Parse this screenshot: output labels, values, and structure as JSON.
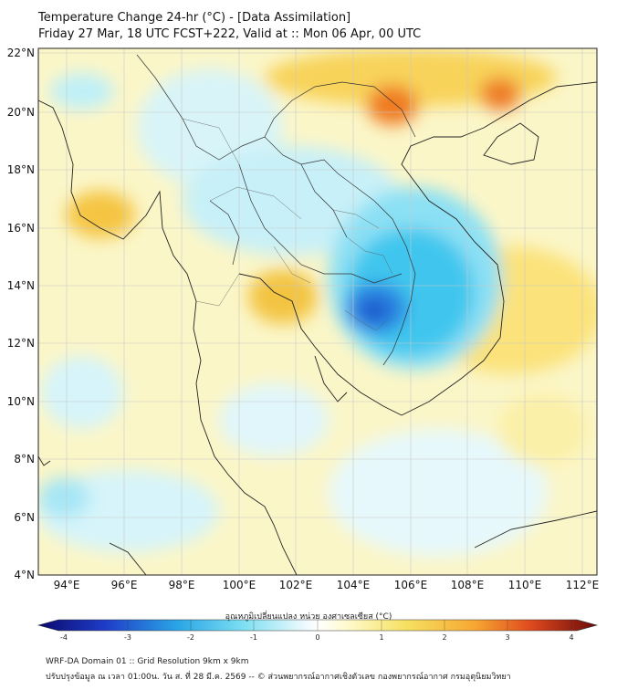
{
  "title": {
    "line1": "Temperature Change 24-hr (°C) - [Data Assimilation]",
    "line2": "Friday 27 Mar, 18 UTC FCST+222, Valid at :: Mon 06 Apr, 00 UTC"
  },
  "map": {
    "lat_labels": [
      "22°N",
      "20°N",
      "18°N",
      "16°N",
      "14°N",
      "12°N",
      "10°N",
      "8°N",
      "6°N",
      "4°N"
    ],
    "lon_labels": [
      "94°E",
      "96°E",
      "98°E",
      "100°E",
      "102°E",
      "104°E",
      "106°E",
      "108°E",
      "110°E",
      "112°E"
    ],
    "lat_range": [
      4,
      22.3
    ],
    "lon_range": [
      93,
      112.5
    ]
  },
  "colorbar": {
    "title": "อุณหภูมิเปลี่ยนแปลง หน่วย องศาเซลเซียส (°C)",
    "ticks": [
      "-4",
      "-3",
      "-2",
      "-1",
      "0",
      "1",
      "2",
      "3",
      "4"
    ],
    "min": -4,
    "max": 4,
    "colors": [
      "#0a0a6e",
      "#1f3cc8",
      "#2aa6e6",
      "#52d6f0",
      "#bff0f8",
      "#ffffff",
      "#fff8b0",
      "#f6e060",
      "#f7b23c",
      "#e8501e",
      "#b4141e",
      "#6a0a0a"
    ]
  },
  "footer": {
    "line1": "WRF-DA Domain 01 :: Grid Resolution 9km x 9km",
    "line2": "ปรับปรุงข้อมูล ณ เวลา 01:00น. วัน ส. ที่ 28 มี.ค. 2569 -- © ส่วนพยากรณ์อากาศเชิงตัวเลข กองพยากรณ์อากาศ กรมอุตุนิยมวิทยา"
  }
}
